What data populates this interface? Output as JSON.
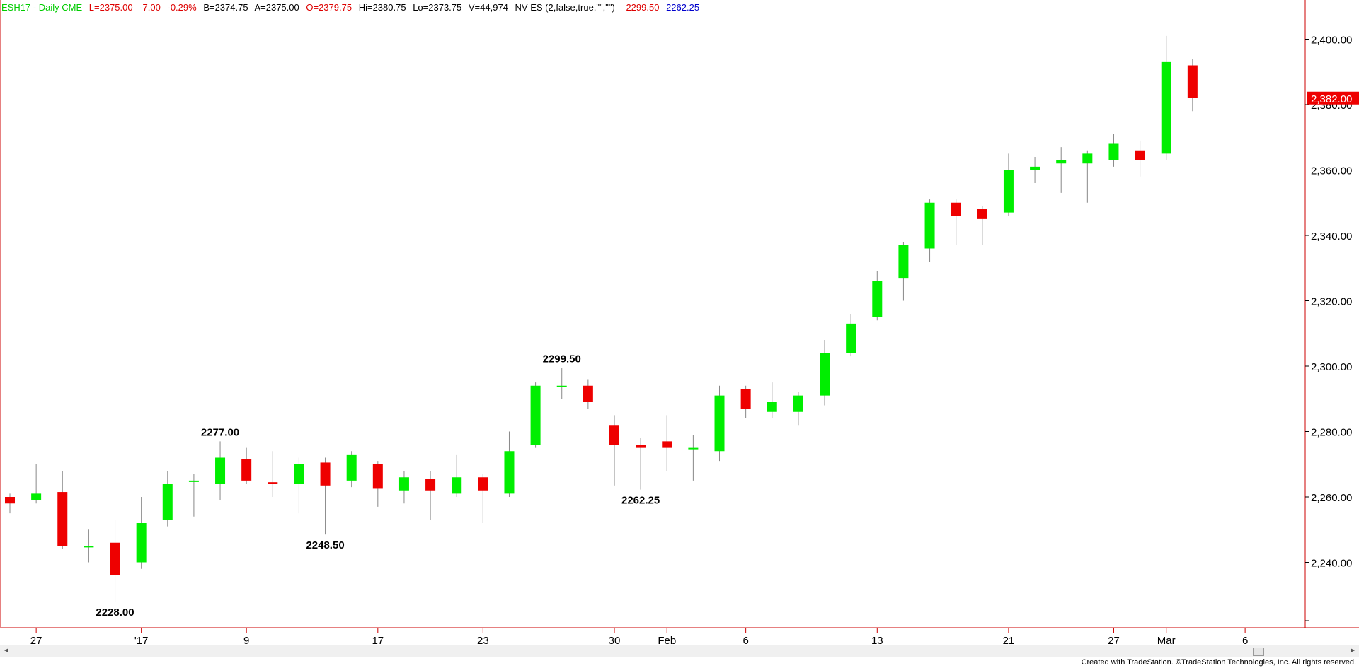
{
  "header": {
    "symbol": "ESH17 - Daily  CME",
    "last": "L=2375.00",
    "change": "-7.00",
    "change_pct": "-0.29%",
    "bid": "B=2374.75",
    "ask": "A=2375.00",
    "open": "O=2379.75",
    "high": "Hi=2380.75",
    "low": "Lo=2373.75",
    "volume": "V=44,974",
    "indicator": "NV ES (2,false,true,\"\",\"\")",
    "ind_val1": "2299.50",
    "ind_val2": "2262.25"
  },
  "footer": {
    "credit": "Created with TradeStation. ©TradeStation Technologies, Inc. All rights reserved."
  },
  "scrollbar": {
    "left_arrow": "◄",
    "right_arrow": "►"
  },
  "colors": {
    "up": "#00ee00",
    "down": "#ee0000",
    "wick": "#888888",
    "header_green": "#00cc00",
    "header_red": "#dd0000",
    "header_blue": "#0000cc",
    "axis": "#cc0000"
  },
  "chart_data": {
    "type": "candlestick",
    "ylim": [
      2220,
      2412
    ],
    "yticks": [
      2240,
      2260,
      2280,
      2300,
      2320,
      2340,
      2360,
      2380,
      2400
    ],
    "ytick_labels": [
      "2,240.00",
      "2,260.00",
      "2,280.00",
      "2,300.00",
      "2,320.00",
      "2,340.00",
      "2,360.00",
      "2,380.00",
      "2,400.00"
    ],
    "xticks": [
      {
        "i": 1,
        "label": "27"
      },
      {
        "i": 5,
        "label": "'17"
      },
      {
        "i": 9,
        "label": "9"
      },
      {
        "i": 14,
        "label": "17"
      },
      {
        "i": 18,
        "label": "23"
      },
      {
        "i": 23,
        "label": "30"
      },
      {
        "i": 25,
        "label": "Feb"
      },
      {
        "i": 28,
        "label": "6"
      },
      {
        "i": 33,
        "label": "13"
      },
      {
        "i": 38,
        "label": "21"
      },
      {
        "i": 42,
        "label": "27"
      },
      {
        "i": 44,
        "label": "Mar"
      },
      {
        "i": 47,
        "label": "6"
      }
    ],
    "last_price": 2382.0,
    "last_price_label": "2,382.00",
    "candles": [
      [
        2260,
        2261,
        2255,
        2258
      ],
      [
        2259,
        2270,
        2258,
        2261
      ],
      [
        2261.5,
        2268,
        2244,
        2245
      ],
      [
        2245,
        2250,
        2240,
        2245
      ],
      [
        2246,
        2253,
        2228,
        2236
      ],
      [
        2240,
        2260,
        2238,
        2252
      ],
      [
        2253,
        2268,
        2251,
        2264
      ],
      [
        2265,
        2267,
        2254,
        2265
      ],
      [
        2264,
        2277,
        2259,
        2272
      ],
      [
        2271.5,
        2275,
        2264,
        2265
      ],
      [
        2264.5,
        2274,
        2260,
        2264
      ],
      [
        2264,
        2272,
        2255,
        2270
      ],
      [
        2270.5,
        2272,
        2248.5,
        2263.5
      ],
      [
        2265,
        2274,
        2263,
        2273
      ],
      [
        2270,
        2271,
        2257,
        2262.5
      ],
      [
        2262,
        2268,
        2258,
        2266
      ],
      [
        2265.5,
        2268,
        2253,
        2262
      ],
      [
        2261,
        2273,
        2260,
        2266
      ],
      [
        2266,
        2267,
        2252,
        2262
      ],
      [
        2261,
        2280,
        2260,
        2274
      ],
      [
        2276,
        2295,
        2275,
        2294
      ],
      [
        2294,
        2299.5,
        2290,
        2294
      ],
      [
        2294,
        2296,
        2287,
        2289
      ],
      [
        2282,
        2285,
        2263.5,
        2276
      ],
      [
        2276,
        2278,
        2262.25,
        2275
      ],
      [
        2277,
        2285,
        2268,
        2275
      ],
      [
        2275,
        2279,
        2265,
        2275
      ],
      [
        2274,
        2294,
        2271,
        2291
      ],
      [
        2293,
        2294,
        2284,
        2287
      ],
      [
        2286,
        2295,
        2284,
        2289
      ],
      [
        2286,
        2292,
        2282,
        2291
      ],
      [
        2291,
        2308,
        2288,
        2304
      ],
      [
        2304,
        2316,
        2303,
        2313
      ],
      [
        2315,
        2329,
        2314,
        2326
      ],
      [
        2327,
        2338,
        2320,
        2337
      ],
      [
        2336,
        2351,
        2332,
        2350
      ],
      [
        2350,
        2351,
        2337,
        2346
      ],
      [
        2348,
        2349,
        2337,
        2345
      ],
      [
        2347,
        2365,
        2346,
        2360
      ],
      [
        2360,
        2364,
        2356,
        2361
      ],
      [
        2362,
        2367,
        2353,
        2363
      ],
      [
        2362,
        2366,
        2350,
        2365
      ],
      [
        2363,
        2371,
        2361,
        2368
      ],
      [
        2366,
        2369,
        2358,
        2363
      ],
      [
        2365,
        2401,
        2363,
        2393
      ],
      [
        2392,
        2394,
        2378,
        2382
      ]
    ],
    "annotations": [
      {
        "i": 4,
        "price": 2228,
        "label": "2228.00",
        "pos": "below"
      },
      {
        "i": 8,
        "price": 2277,
        "label": "2277.00",
        "pos": "above"
      },
      {
        "i": 12,
        "price": 2248.5,
        "label": "2248.50",
        "pos": "below"
      },
      {
        "i": 21,
        "price": 2299.5,
        "label": "2299.50",
        "pos": "above"
      },
      {
        "i": 24,
        "price": 2262.25,
        "label": "2262.25",
        "pos": "below"
      }
    ]
  }
}
